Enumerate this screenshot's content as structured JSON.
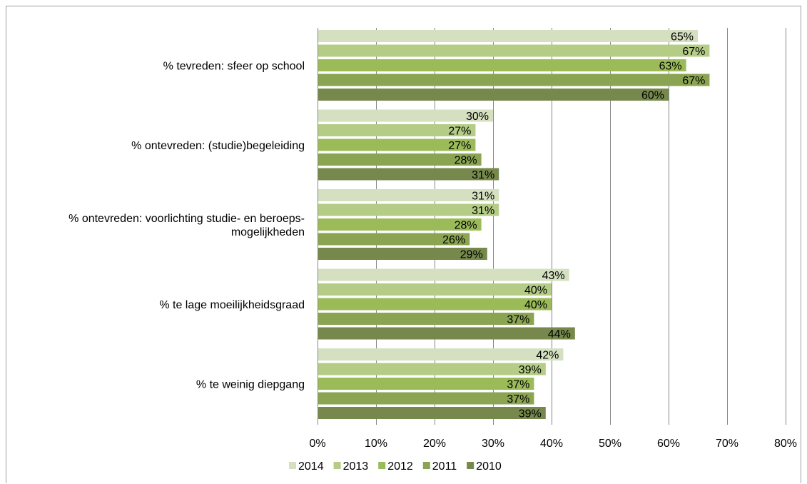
{
  "chart_data": {
    "type": "bar",
    "orientation": "horizontal",
    "categories": [
      [
        "% tevreden: sfeer op school"
      ],
      [
        "% ontevreden: (studie)begeleiding"
      ],
      [
        "% ontevreden: voorlichting studie- en beroeps-",
        "mogelijkheden"
      ],
      [
        "% te lage moeilijkheidsgraad"
      ],
      [
        "% te weinig diepgang"
      ]
    ],
    "series": [
      {
        "name": "2014",
        "color": "#d4e0c0",
        "values": [
          65,
          30,
          31,
          43,
          42
        ],
        "labels": [
          "65%",
          "30%",
          "31%",
          "43%",
          "42%"
        ]
      },
      {
        "name": "2013",
        "color": "#b4cc86",
        "values": [
          67,
          27,
          31,
          40,
          39
        ],
        "labels": [
          "67%",
          "27%",
          "31%",
          "40%",
          "39%"
        ]
      },
      {
        "name": "2012",
        "color": "#9bbb59",
        "values": [
          63,
          27,
          28,
          40,
          37
        ],
        "labels": [
          "63%",
          "27%",
          "28%",
          "40%",
          "37%"
        ]
      },
      {
        "name": "2011",
        "color": "#8aa452",
        "values": [
          67,
          28,
          26,
          37,
          37
        ],
        "labels": [
          "67%",
          "28%",
          "26%",
          "37%",
          "37%"
        ]
      },
      {
        "name": "2010",
        "color": "#76884c",
        "values": [
          60,
          31,
          29,
          44,
          39
        ],
        "labels": [
          "60%",
          "31%",
          "29%",
          "44%",
          "39%"
        ]
      }
    ],
    "xlim": [
      0,
      80
    ],
    "xticks": [
      0,
      10,
      20,
      30,
      40,
      50,
      60,
      70,
      80
    ],
    "xtick_labels": [
      "0%",
      "10%",
      "20%",
      "30%",
      "40%",
      "50%",
      "60%",
      "70%",
      "80%"
    ],
    "grid": "vertical",
    "legend_position": "bottom",
    "colors": {
      "gridline": "#868686",
      "axis": "#868686"
    }
  }
}
